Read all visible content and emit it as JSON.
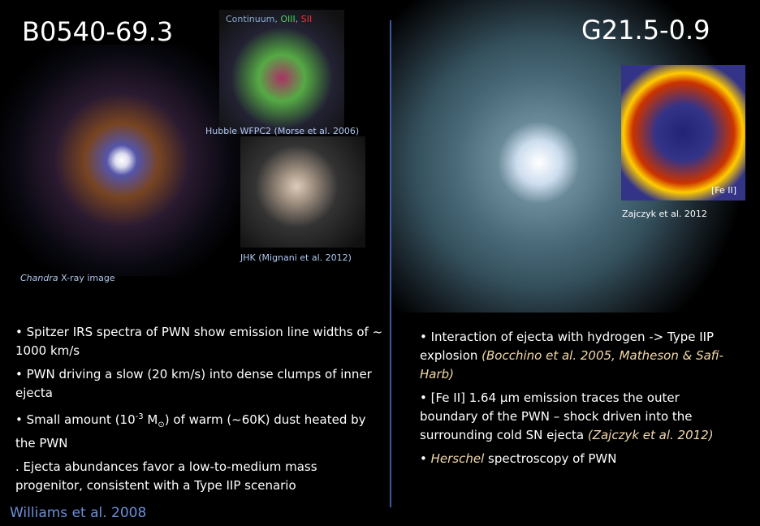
{
  "left": {
    "title": "B0540-69.3",
    "inset_top_caption": [
      "Continuum, ",
      "OIII",
      ", ",
      "SII"
    ],
    "inset_mid_caption": "Hubble WFPC2 (Morse et al. 2006)",
    "inset_bottom_caption": "JHK (Mignani et al. 2012)",
    "image_caption": [
      "Chandra",
      " X-ray image"
    ],
    "bullets": [
      [
        "• Spitzer IRS spectra of PWN show emission line widths of ~ 1000 km/s"
      ],
      [
        "• PWN driving a slow (20 km/s) into dense clumps of inner ejecta"
      ],
      [
        "• Small amount (10",
        "-3",
        " M",
        "⊙",
        ") of warm (~60K) dust heated by the PWN"
      ],
      [
        ". ",
        "Ejecta abundances favor a low-to-medium mass progenitor, consistent with a Type IIP scenario"
      ]
    ],
    "reference": "Williams et al. 2008"
  },
  "right": {
    "title": "G21.5-0.9",
    "inset_label": "[Fe II]",
    "inset_caption": "Zajczyk et al. 2012",
    "bullets": [
      [
        "• Interaction of ejecta with hydrogen -> Type IIP explosion ",
        "(Bocchino et al. 2005, Matheson & Safi-Harb)"
      ],
      [
        "• [Fe II] 1.64 µm emission traces the outer boundary of the PWN – shock driven into the surrounding cold SN ejecta ",
        "(Zajczyk et al. 2012)"
      ],
      [
        "• ",
        "Herschel",
        " spectroscopy of PWN"
      ]
    ]
  }
}
